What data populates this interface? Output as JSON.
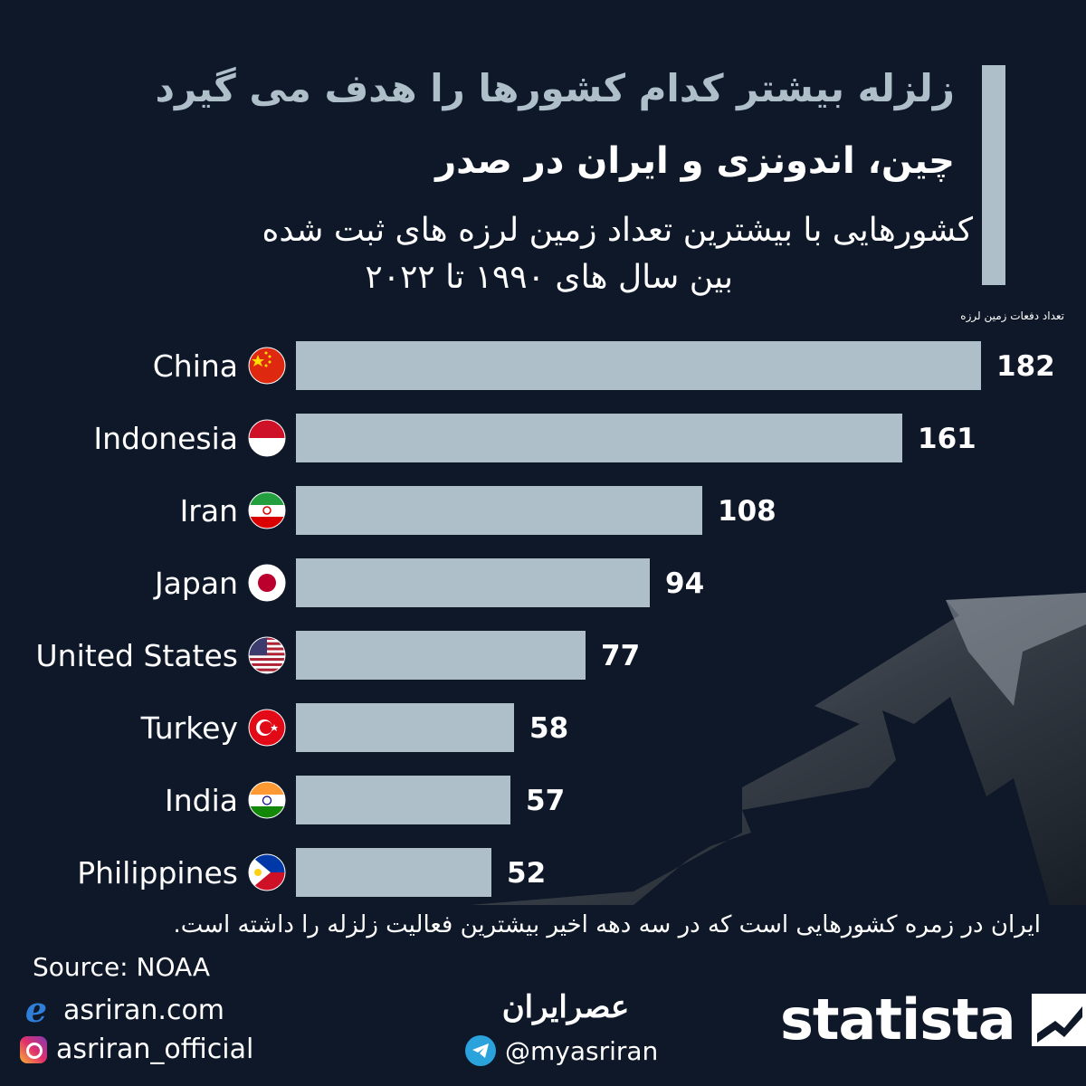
{
  "header": {
    "title": "زلزله بیشتر کدام کشورها را هدف می گیرد",
    "headline": "چین، اندونزی و ایران در صدر",
    "subtitle_line1": "کشورهایی با بیشترین تعداد زمین لرزه های ثبت شده",
    "subtitle_line2": "بین سال های ۱۹۹۰ تا ۲۰۲۲",
    "unit_label": "تعداد دفعات زمین لرزه"
  },
  "chart_data": {
    "type": "bar",
    "orientation": "horizontal",
    "title": "کشورهایی با بیشترین تعداد زمین لرزه های ثبت شده",
    "categories": [
      "China",
      "Indonesia",
      "Iran",
      "Japan",
      "United States",
      "Turkey",
      "India",
      "Philippines"
    ],
    "values": [
      182,
      161,
      108,
      94,
      77,
      58,
      57,
      52
    ],
    "value_labels": [
      "182",
      "161",
      "108",
      "94",
      "77",
      "58",
      "57",
      "52"
    ],
    "flags": [
      "china-flag-icon",
      "indonesia-flag-icon",
      "iran-flag-icon",
      "japan-flag-icon",
      "usa-flag-icon",
      "turkey-flag-icon",
      "india-flag-icon",
      "philippines-flag-icon"
    ],
    "xlim": [
      0,
      182
    ],
    "grid": false,
    "bar_color": "#aebfca"
  },
  "footer": {
    "note": "ایران در زمره کشورهایی است که در سه دهه اخیر بیشترین فعالیت زلزله را داشته است.",
    "source": "Source: NOAA",
    "site": "asriran.com",
    "instagram": "asriran_official",
    "center_logo": "عصرایران",
    "telegram": "@myasriran",
    "statista": "statista"
  },
  "colors": {
    "background": "#0e1828",
    "bar": "#aebfca",
    "accent": "#aebfca"
  }
}
